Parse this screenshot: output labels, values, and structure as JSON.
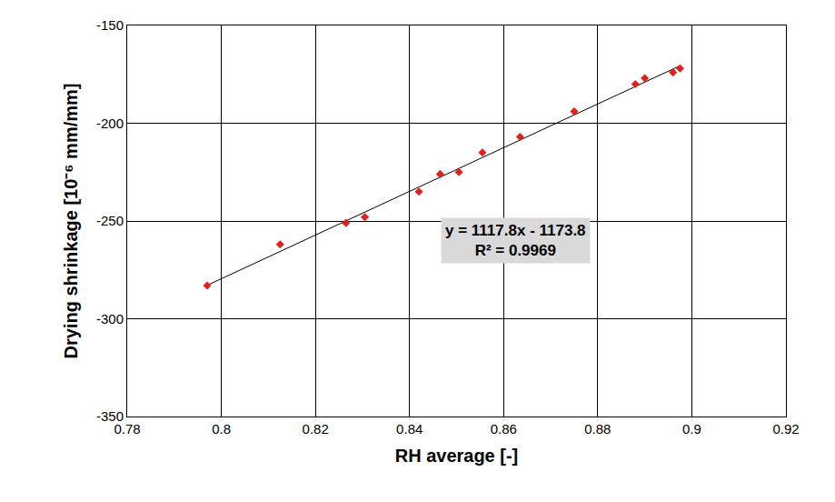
{
  "chart_data": {
    "type": "scatter",
    "x_label": "RH average [-]",
    "y_label": "Drying shrinkage [10⁻⁶ mm/mm]",
    "series": [
      {
        "type": "scatter",
        "color": "#e3211c",
        "marker": "diamond",
        "x": [
          0.797,
          0.8125,
          0.8265,
          0.8305,
          0.842,
          0.8465,
          0.8505,
          0.8555,
          0.8635,
          0.875,
          0.888,
          0.89,
          0.896,
          0.8975
        ],
        "values": [
          -283,
          -262,
          -251,
          -248,
          -235,
          -226,
          -225,
          -215,
          -207,
          -194,
          -180,
          -177,
          -174,
          -172
        ]
      },
      {
        "type": "line",
        "color": "#000000",
        "line_style": "solid",
        "x": [
          0.797,
          0.8975
        ],
        "values": [
          -282.9,
          -170.6
        ]
      }
    ],
    "annotations": [
      [
        "y = 1117.8x - 1173.8",
        "R² = 0.9969"
      ]
    ],
    "xlim": [
      0.78,
      0.92
    ],
    "xticks": [
      0.78,
      0.8,
      0.82,
      0.84,
      0.86,
      0.88,
      0.9,
      0.92
    ],
    "ylim": [
      -350,
      -150
    ],
    "yticks": [
      -350,
      -300,
      -250,
      -200,
      -150
    ],
    "grid": true
  }
}
